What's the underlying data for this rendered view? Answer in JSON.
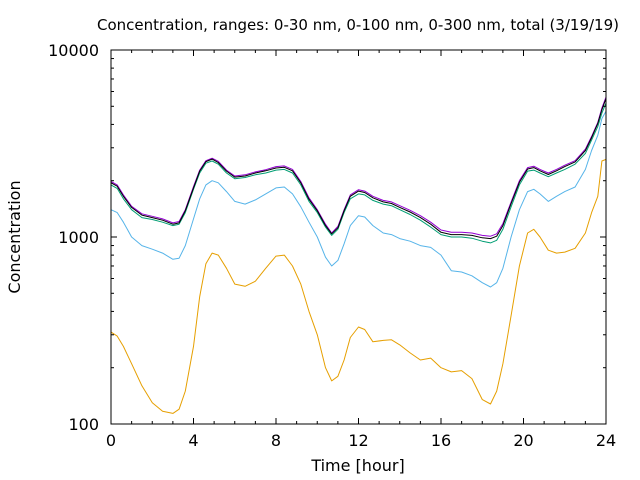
{
  "chart_data": {
    "type": "line",
    "title": "Concentration, ranges: 0-30 nm, 0-100 nm, 0-300 nm, total (3/19/19)",
    "xlabel": "Time [hour]",
    "ylabel": "Concentration",
    "xlim": [
      0,
      24
    ],
    "ylim": [
      100,
      10000
    ],
    "yscale": "log",
    "x_ticks": [
      0,
      4,
      8,
      12,
      16,
      20,
      24
    ],
    "x_tick_labels": [
      "0",
      "4",
      "8",
      "12",
      "16",
      "20",
      "24"
    ],
    "y_ticks": [
      100,
      1000,
      10000
    ],
    "y_tick_labels": [
      "100",
      "1000",
      "10000"
    ],
    "grid": false,
    "legend": "none",
    "series": [
      {
        "color": "#e69f00",
        "points": [
          [
            0,
            310
          ],
          [
            0.3,
            295
          ],
          [
            0.6,
            260
          ],
          [
            1,
            210
          ],
          [
            1.5,
            160
          ],
          [
            2,
            130
          ],
          [
            2.5,
            117
          ],
          [
            3,
            114
          ],
          [
            3.3,
            120
          ],
          [
            3.6,
            150
          ],
          [
            4,
            260
          ],
          [
            4.3,
            480
          ],
          [
            4.6,
            720
          ],
          [
            4.9,
            820
          ],
          [
            5.2,
            800
          ],
          [
            5.6,
            680
          ],
          [
            6,
            560
          ],
          [
            6.5,
            545
          ],
          [
            7,
            580
          ],
          [
            7.5,
            680
          ],
          [
            8,
            790
          ],
          [
            8.4,
            800
          ],
          [
            8.8,
            700
          ],
          [
            9.2,
            560
          ],
          [
            9.6,
            400
          ],
          [
            10,
            300
          ],
          [
            10.4,
            200
          ],
          [
            10.7,
            170
          ],
          [
            11,
            180
          ],
          [
            11.3,
            220
          ],
          [
            11.6,
            290
          ],
          [
            12,
            330
          ],
          [
            12.3,
            320
          ],
          [
            12.7,
            275
          ],
          [
            13.2,
            280
          ],
          [
            13.6,
            282
          ],
          [
            14,
            265
          ],
          [
            14.5,
            240
          ],
          [
            15,
            220
          ],
          [
            15.5,
            225
          ],
          [
            16,
            200
          ],
          [
            16.5,
            190
          ],
          [
            17,
            193
          ],
          [
            17.5,
            175
          ],
          [
            18,
            135
          ],
          [
            18.4,
            128
          ],
          [
            18.7,
            150
          ],
          [
            19,
            210
          ],
          [
            19.4,
            380
          ],
          [
            19.8,
            700
          ],
          [
            20.2,
            1050
          ],
          [
            20.5,
            1100
          ],
          [
            20.8,
            1000
          ],
          [
            21.2,
            850
          ],
          [
            21.6,
            820
          ],
          [
            22,
            830
          ],
          [
            22.5,
            870
          ],
          [
            23,
            1050
          ],
          [
            23.3,
            1350
          ],
          [
            23.6,
            1650
          ],
          [
            23.8,
            2550
          ],
          [
            24,
            2600
          ]
        ]
      },
      {
        "color": "#56b4e9",
        "points": [
          [
            0,
            1400
          ],
          [
            0.3,
            1350
          ],
          [
            0.6,
            1200
          ],
          [
            1,
            1000
          ],
          [
            1.5,
            900
          ],
          [
            2,
            860
          ],
          [
            2.5,
            820
          ],
          [
            3,
            760
          ],
          [
            3.3,
            770
          ],
          [
            3.6,
            900
          ],
          [
            4,
            1250
          ],
          [
            4.3,
            1600
          ],
          [
            4.6,
            1900
          ],
          [
            4.9,
            2000
          ],
          [
            5.2,
            1950
          ],
          [
            5.6,
            1750
          ],
          [
            6,
            1550
          ],
          [
            6.5,
            1500
          ],
          [
            7,
            1580
          ],
          [
            7.5,
            1700
          ],
          [
            8,
            1830
          ],
          [
            8.4,
            1850
          ],
          [
            8.8,
            1700
          ],
          [
            9.2,
            1450
          ],
          [
            9.6,
            1200
          ],
          [
            10,
            1000
          ],
          [
            10.4,
            780
          ],
          [
            10.7,
            700
          ],
          [
            11,
            750
          ],
          [
            11.3,
            920
          ],
          [
            11.6,
            1150
          ],
          [
            12,
            1300
          ],
          [
            12.3,
            1280
          ],
          [
            12.7,
            1150
          ],
          [
            13.2,
            1050
          ],
          [
            13.6,
            1030
          ],
          [
            14,
            980
          ],
          [
            14.5,
            950
          ],
          [
            15,
            900
          ],
          [
            15.5,
            880
          ],
          [
            16,
            800
          ],
          [
            16.5,
            660
          ],
          [
            17,
            650
          ],
          [
            17.5,
            620
          ],
          [
            18,
            570
          ],
          [
            18.4,
            540
          ],
          [
            18.7,
            570
          ],
          [
            19,
            680
          ],
          [
            19.4,
            1000
          ],
          [
            19.8,
            1400
          ],
          [
            20.2,
            1750
          ],
          [
            20.5,
            1800
          ],
          [
            20.8,
            1700
          ],
          [
            21.2,
            1550
          ],
          [
            21.6,
            1650
          ],
          [
            22,
            1750
          ],
          [
            22.5,
            1850
          ],
          [
            23,
            2300
          ],
          [
            23.3,
            2900
          ],
          [
            23.6,
            3500
          ],
          [
            23.8,
            4300
          ],
          [
            24,
            4700
          ]
        ]
      },
      {
        "color": "#009e73",
        "points": [
          [
            0,
            1900
          ],
          [
            0.3,
            1820
          ],
          [
            0.6,
            1600
          ],
          [
            1,
            1400
          ],
          [
            1.5,
            1270
          ],
          [
            2,
            1240
          ],
          [
            2.5,
            1200
          ],
          [
            3,
            1150
          ],
          [
            3.3,
            1170
          ],
          [
            3.6,
            1350
          ],
          [
            4,
            1800
          ],
          [
            4.3,
            2200
          ],
          [
            4.6,
            2480
          ],
          [
            4.9,
            2550
          ],
          [
            5.2,
            2450
          ],
          [
            5.6,
            2200
          ],
          [
            6,
            2050
          ],
          [
            6.5,
            2080
          ],
          [
            7,
            2150
          ],
          [
            7.5,
            2200
          ],
          [
            8,
            2280
          ],
          [
            8.4,
            2300
          ],
          [
            8.8,
            2200
          ],
          [
            9.2,
            1900
          ],
          [
            9.6,
            1550
          ],
          [
            10,
            1350
          ],
          [
            10.4,
            1130
          ],
          [
            10.7,
            1020
          ],
          [
            11,
            1100
          ],
          [
            11.3,
            1350
          ],
          [
            11.6,
            1600
          ],
          [
            12,
            1700
          ],
          [
            12.3,
            1680
          ],
          [
            12.7,
            1570
          ],
          [
            13.2,
            1500
          ],
          [
            13.6,
            1470
          ],
          [
            14,
            1400
          ],
          [
            14.5,
            1320
          ],
          [
            15,
            1230
          ],
          [
            15.5,
            1130
          ],
          [
            16,
            1030
          ],
          [
            16.5,
            1000
          ],
          [
            17,
            1000
          ],
          [
            17.5,
            985
          ],
          [
            18,
            950
          ],
          [
            18.4,
            930
          ],
          [
            18.7,
            960
          ],
          [
            19,
            1100
          ],
          [
            19.4,
            1450
          ],
          [
            19.8,
            1900
          ],
          [
            20.2,
            2250
          ],
          [
            20.5,
            2280
          ],
          [
            20.8,
            2200
          ],
          [
            21.2,
            2100
          ],
          [
            21.6,
            2200
          ],
          [
            22,
            2300
          ],
          [
            22.5,
            2450
          ],
          [
            23,
            2800
          ],
          [
            23.3,
            3300
          ],
          [
            23.6,
            3900
          ],
          [
            23.8,
            4600
          ],
          [
            24,
            5200
          ]
        ]
      },
      {
        "color": "#9400d3",
        "points": [
          [
            0,
            1980
          ],
          [
            0.3,
            1900
          ],
          [
            0.6,
            1680
          ],
          [
            1,
            1460
          ],
          [
            1.5,
            1330
          ],
          [
            2,
            1290
          ],
          [
            2.5,
            1250
          ],
          [
            3,
            1190
          ],
          [
            3.3,
            1210
          ],
          [
            3.6,
            1400
          ],
          [
            4,
            1860
          ],
          [
            4.3,
            2280
          ],
          [
            4.6,
            2560
          ],
          [
            4.9,
            2640
          ],
          [
            5.2,
            2540
          ],
          [
            5.6,
            2280
          ],
          [
            6,
            2120
          ],
          [
            6.5,
            2150
          ],
          [
            7,
            2230
          ],
          [
            7.5,
            2290
          ],
          [
            8,
            2380
          ],
          [
            8.4,
            2400
          ],
          [
            8.8,
            2300
          ],
          [
            9.2,
            1980
          ],
          [
            9.6,
            1620
          ],
          [
            10,
            1400
          ],
          [
            10.4,
            1170
          ],
          [
            10.7,
            1050
          ],
          [
            11,
            1140
          ],
          [
            11.3,
            1400
          ],
          [
            11.6,
            1680
          ],
          [
            12,
            1790
          ],
          [
            12.3,
            1760
          ],
          [
            12.7,
            1650
          ],
          [
            13.2,
            1570
          ],
          [
            13.6,
            1540
          ],
          [
            14,
            1470
          ],
          [
            14.5,
            1390
          ],
          [
            15,
            1300
          ],
          [
            15.5,
            1200
          ],
          [
            16,
            1090
          ],
          [
            16.5,
            1060
          ],
          [
            17,
            1060
          ],
          [
            17.5,
            1050
          ],
          [
            18,
            1020
          ],
          [
            18.4,
            1010
          ],
          [
            18.7,
            1040
          ],
          [
            19,
            1180
          ],
          [
            19.4,
            1540
          ],
          [
            19.8,
            2000
          ],
          [
            20.2,
            2350
          ],
          [
            20.5,
            2390
          ],
          [
            20.8,
            2300
          ],
          [
            21.2,
            2200
          ],
          [
            21.6,
            2300
          ],
          [
            22,
            2420
          ],
          [
            22.5,
            2560
          ],
          [
            23,
            2950
          ],
          [
            23.3,
            3450
          ],
          [
            23.6,
            4100
          ],
          [
            23.8,
            4900
          ],
          [
            24,
            5600
          ]
        ]
      },
      {
        "color": "#000000",
        "points": [
          [
            0,
            1950
          ],
          [
            0.3,
            1870
          ],
          [
            0.6,
            1650
          ],
          [
            1,
            1440
          ],
          [
            1.5,
            1310
          ],
          [
            2,
            1270
          ],
          [
            2.5,
            1230
          ],
          [
            3,
            1170
          ],
          [
            3.3,
            1190
          ],
          [
            3.6,
            1380
          ],
          [
            4,
            1830
          ],
          [
            4.3,
            2250
          ],
          [
            4.6,
            2530
          ],
          [
            4.9,
            2610
          ],
          [
            5.2,
            2500
          ],
          [
            5.6,
            2250
          ],
          [
            6,
            2090
          ],
          [
            6.5,
            2120
          ],
          [
            7,
            2200
          ],
          [
            7.5,
            2260
          ],
          [
            8,
            2340
          ],
          [
            8.4,
            2360
          ],
          [
            8.8,
            2260
          ],
          [
            9.2,
            1950
          ],
          [
            9.6,
            1590
          ],
          [
            10,
            1380
          ],
          [
            10.4,
            1150
          ],
          [
            10.7,
            1040
          ],
          [
            11,
            1120
          ],
          [
            11.3,
            1380
          ],
          [
            11.6,
            1650
          ],
          [
            12,
            1760
          ],
          [
            12.3,
            1730
          ],
          [
            12.7,
            1620
          ],
          [
            13.2,
            1540
          ],
          [
            13.6,
            1510
          ],
          [
            14,
            1440
          ],
          [
            14.5,
            1360
          ],
          [
            15,
            1270
          ],
          [
            15.5,
            1170
          ],
          [
            16,
            1060
          ],
          [
            16.5,
            1030
          ],
          [
            17,
            1030
          ],
          [
            17.5,
            1020
          ],
          [
            18,
            990
          ],
          [
            18.4,
            980
          ],
          [
            18.7,
            1010
          ],
          [
            19,
            1150
          ],
          [
            19.4,
            1510
          ],
          [
            19.8,
            1960
          ],
          [
            20.2,
            2310
          ],
          [
            20.5,
            2350
          ],
          [
            20.8,
            2260
          ],
          [
            21.2,
            2160
          ],
          [
            21.6,
            2260
          ],
          [
            22,
            2380
          ],
          [
            22.5,
            2520
          ],
          [
            23,
            2900
          ],
          [
            23.3,
            3400
          ],
          [
            23.6,
            4050
          ],
          [
            23.8,
            4800
          ],
          [
            24,
            5500
          ]
        ]
      }
    ]
  }
}
